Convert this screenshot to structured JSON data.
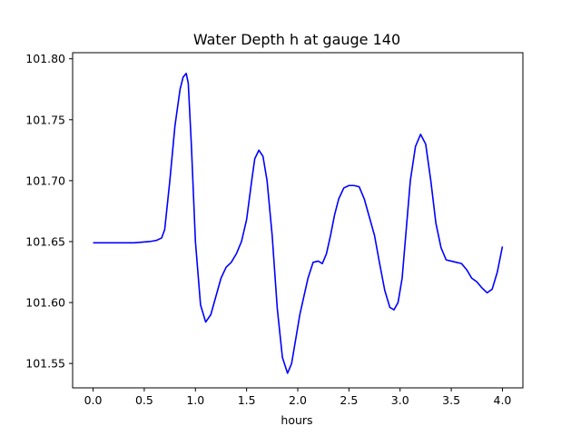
{
  "chart_data": {
    "type": "line",
    "title": "Water Depth h at gauge 140",
    "xlabel": "hours",
    "ylabel": "",
    "xlim": [
      -0.2,
      4.2
    ],
    "ylim": [
      101.53,
      101.805
    ],
    "xticks": [
      0.0,
      0.5,
      1.0,
      1.5,
      2.0,
      2.5,
      3.0,
      3.5,
      4.0
    ],
    "xtick_labels": [
      "0.0",
      "0.5",
      "1.0",
      "1.5",
      "2.0",
      "2.5",
      "3.0",
      "3.5",
      "4.0"
    ],
    "yticks": [
      101.55,
      101.6,
      101.65,
      101.7,
      101.75,
      101.8
    ],
    "ytick_labels": [
      "101.55",
      "101.60",
      "101.65",
      "101.70",
      "101.75",
      "101.80"
    ],
    "grid": false,
    "series": [
      {
        "color": "#0000ff",
        "x": [
          0.0,
          0.2,
          0.4,
          0.55,
          0.62,
          0.67,
          0.7,
          0.75,
          0.8,
          0.85,
          0.88,
          0.91,
          0.93,
          0.96,
          1.0,
          1.05,
          1.1,
          1.15,
          1.2,
          1.25,
          1.3,
          1.35,
          1.4,
          1.45,
          1.5,
          1.55,
          1.58,
          1.62,
          1.66,
          1.7,
          1.75,
          1.8,
          1.85,
          1.9,
          1.94,
          1.98,
          2.02,
          2.06,
          2.1,
          2.15,
          2.2,
          2.24,
          2.28,
          2.32,
          2.36,
          2.4,
          2.45,
          2.5,
          2.55,
          2.6,
          2.65,
          2.7,
          2.75,
          2.8,
          2.85,
          2.9,
          2.94,
          2.98,
          3.02,
          3.06,
          3.1,
          3.15,
          3.2,
          3.25,
          3.3,
          3.35,
          3.4,
          3.45,
          3.5,
          3.55,
          3.6,
          3.65,
          3.7,
          3.75,
          3.8,
          3.85,
          3.9,
          3.95,
          4.0
        ],
        "y": [
          101.649,
          101.649,
          101.649,
          101.65,
          101.651,
          101.653,
          101.66,
          101.7,
          101.745,
          101.775,
          101.785,
          101.788,
          101.78,
          101.73,
          101.65,
          101.598,
          101.584,
          101.59,
          101.605,
          101.62,
          101.629,
          101.633,
          101.64,
          101.65,
          101.668,
          101.7,
          101.718,
          101.725,
          101.72,
          101.7,
          101.655,
          101.595,
          101.555,
          101.542,
          101.55,
          101.57,
          101.59,
          101.605,
          101.62,
          101.633,
          101.634,
          101.632,
          101.64,
          101.655,
          101.672,
          101.685,
          101.694,
          101.696,
          101.696,
          101.695,
          101.685,
          101.67,
          101.655,
          101.632,
          101.61,
          101.596,
          101.594,
          101.6,
          101.62,
          101.66,
          101.7,
          101.728,
          101.738,
          101.73,
          101.7,
          101.665,
          101.645,
          101.635,
          101.634,
          101.633,
          101.632,
          101.627,
          101.62,
          101.617,
          101.612,
          101.608,
          101.611,
          101.625,
          101.646
        ]
      }
    ]
  }
}
